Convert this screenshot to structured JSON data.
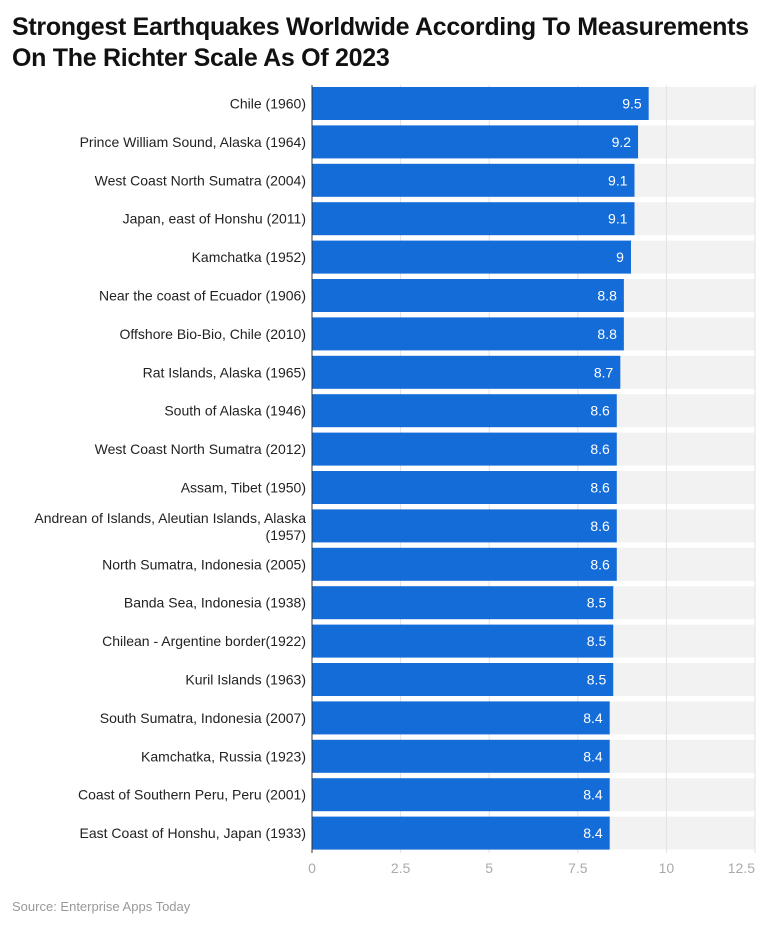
{
  "chart_data": {
    "type": "bar",
    "orientation": "horizontal",
    "title": "Strongest Earthquakes Worldwide According To Measurements On The Richter Scale As Of 2023",
    "source": "Source: Enterprise Apps Today",
    "categories": [
      "Chile (1960)",
      "Prince William Sound, Alaska (1964)",
      "West Coast North Sumatra (2004)",
      "Japan, east of Honshu (2011)",
      "Kamchatka (1952)",
      "Near the coast of Ecuador (1906)",
      "Offshore Bio-Bio, Chile (2010)",
      "Rat Islands, Alaska (1965)",
      "South of Alaska (1946)",
      "West Coast North Sumatra (2012)",
      "Assam, Tibet (1950)",
      "Andrean of Islands, Aleutian Islands, Alaska (1957)",
      "North Sumatra, Indonesia (2005)",
      "Banda Sea, Indonesia (1938)",
      "Chilean - Argentine border(1922)",
      "Kuril Islands (1963)",
      "South Sumatra, Indonesia (2007)",
      "Kamchatka, Russia (1923)",
      "Coast of Southern Peru, Peru (2001)",
      "East Coast of Honshu, Japan (1933)"
    ],
    "values": [
      9.5,
      9.2,
      9.1,
      9.1,
      9,
      8.8,
      8.8,
      8.7,
      8.6,
      8.6,
      8.6,
      8.6,
      8.6,
      8.5,
      8.5,
      8.5,
      8.4,
      8.4,
      8.4,
      8.4
    ],
    "xlim": [
      0,
      12.5
    ],
    "xticks": [
      "0",
      "2.5",
      "5",
      "7.5",
      "10",
      "12.5"
    ],
    "grid": true,
    "colors": {
      "bar": "#136cd8",
      "plot_bg": "#f2f2f2"
    }
  }
}
